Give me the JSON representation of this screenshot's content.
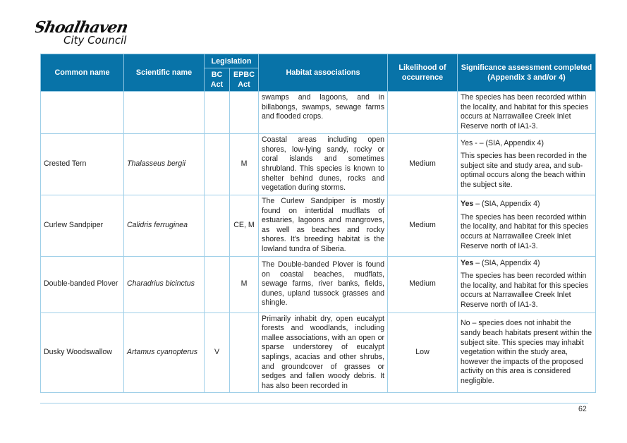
{
  "logo": {
    "line1": "Shoalhaven",
    "line2": "City Council"
  },
  "table": {
    "headers": {
      "common_name": "Common name",
      "scientific_name": "Scientific name",
      "legislation": "Legislation",
      "bc_act": "BC Act",
      "epbc_act": "EPBC Act",
      "habitat": "Habitat associations",
      "likelihood": "Likelihood of occurrence",
      "significance": "Significance assessment completed (Appendix 3 and/or 4)"
    },
    "rows": [
      {
        "common": "",
        "scientific": "",
        "bc": "",
        "epbc": "",
        "habitat": "swamps and lagoons, and in billabongs, swamps, sewage farms and flooded crops.",
        "likelihood": "",
        "sig_head": "",
        "sig_head_rest": "",
        "sig_body": "The species has been recorded within the locality, and habitat for this species occurs at Narrawallee Creek Inlet Reserve north of IA1-3."
      },
      {
        "common": "Crested Tern",
        "scientific": "Thalasseus bergii",
        "bc": "",
        "epbc": "M",
        "habitat": "Coastal areas including open shores, low-lying sandy, rocky or coral islands and sometimes shrubland. This species is known to shelter behind dunes, rocks and vegetation during storms.",
        "likelihood": "Medium",
        "sig_head": "",
        "sig_head_rest": "Yes - – (SIA, Appendix 4)",
        "sig_body": "This species has been recorded in the subject site and study area, and sub-optimal occurs along the beach within the subject site."
      },
      {
        "common": "Curlew Sandpiper",
        "scientific": "Calidris ferruginea",
        "bc": "",
        "epbc": "CE, M",
        "habitat": "The Curlew Sandpiper is mostly found on intertidal mudflats of estuaries, lagoons and mangroves, as well as beaches and rocky shores. It's breeding habitat is the lowland tundra of Siberia.",
        "likelihood": "Medium",
        "sig_head": "Yes",
        "sig_head_rest": " – (SIA, Appendix 4)",
        "sig_body": "The species has been recorded within the locality, and habitat for this species occurs at Narrawallee Creek Inlet Reserve north of IA1-3."
      },
      {
        "common": "Double-banded Plover",
        "scientific": "Charadrius bicinctus",
        "bc": "",
        "epbc": "M",
        "habitat": "The Double-banded Plover is found on coastal beaches, mudflats, sewage farms, river banks, fields, dunes, upland tussock grasses and shingle.",
        "likelihood": "Medium",
        "sig_head": "Yes",
        "sig_head_rest": " – (SIA, Appendix 4)",
        "sig_body": "The species has been recorded within the locality, and habitat for this species occurs at Narrawallee Creek Inlet Reserve north of IA1-3."
      },
      {
        "common": "Dusky Woodswallow",
        "scientific": "Artamus cyanopterus",
        "bc": "V",
        "epbc": "",
        "habitat": "Primarily inhabit dry, open eucalypt forests and woodlands, including mallee associations, with an open or sparse understorey of eucalypt saplings, acacias and other shrubs, and groundcover of grasses or sedges and fallen woody debris. It has also been recorded in",
        "likelihood": "Low",
        "sig_head": "",
        "sig_head_rest": "",
        "sig_body": "No – species does not inhabit the sandy beach habitats present within the subject site. This species may inhabit vegetation within the study area, however the impacts of the proposed activity on this area is considered negligible."
      }
    ]
  },
  "footer": {
    "page_number": "62"
  },
  "colors": {
    "header_bg": "#0873a8",
    "border": "#9fcfe8"
  }
}
